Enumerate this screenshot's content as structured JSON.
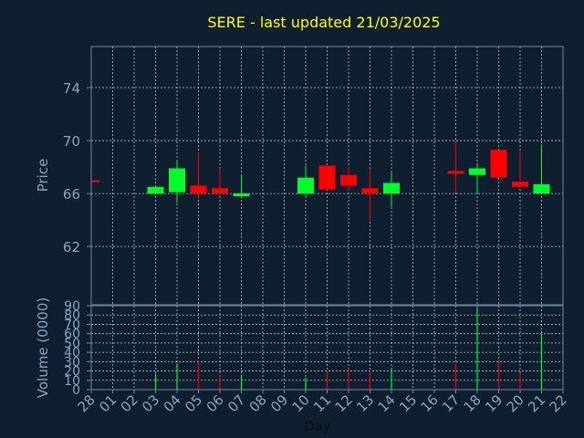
{
  "chart_data": [
    {
      "type": "candlestick",
      "title": "SERE - last updated 21/03/2025",
      "ylabel": "Price",
      "ylim": [
        57.6,
        77.1
      ],
      "yticks": [
        "62",
        "66",
        "70",
        "74"
      ],
      "ytick_values": [
        62,
        66,
        70,
        74
      ],
      "grid": true,
      "up_color": "#00ff2a",
      "down_color": "#ff0000",
      "candles": [
        {
          "day": "28",
          "open": 67.0,
          "close": 66.9,
          "high": 67.0,
          "low": 66.9
        },
        {
          "day": "03",
          "open": 66.0,
          "close": 66.5,
          "high": 66.5,
          "low": 66.0
        },
        {
          "day": "04",
          "open": 66.1,
          "close": 67.9,
          "high": 68.5,
          "low": 65.3
        },
        {
          "day": "05",
          "open": 66.6,
          "close": 66.0,
          "high": 69.1,
          "low": 65.6
        },
        {
          "day": "06",
          "open": 66.4,
          "close": 66.0,
          "high": 67.9,
          "low": 65.8
        },
        {
          "day": "07",
          "open": 65.8,
          "close": 66.0,
          "high": 67.4,
          "low": 65.8
        },
        {
          "day": "10",
          "open": 66.0,
          "close": 67.2,
          "high": 68.1,
          "low": 65.8
        },
        {
          "day": "11",
          "open": 68.1,
          "close": 66.3,
          "high": 68.1,
          "low": 66.3
        },
        {
          "day": "12",
          "open": 67.4,
          "close": 66.6,
          "high": 68.0,
          "low": 66.2
        },
        {
          "day": "13",
          "open": 66.4,
          "close": 66.0,
          "high": 67.9,
          "low": 63.9
        },
        {
          "day": "14",
          "open": 66.0,
          "close": 66.8,
          "high": 67.6,
          "low": 65.0
        },
        {
          "day": "17",
          "open": 67.7,
          "close": 67.5,
          "high": 70.0,
          "low": 66.1
        },
        {
          "day": "18",
          "open": 67.4,
          "close": 67.9,
          "high": 68.3,
          "low": 66.0
        },
        {
          "day": "19",
          "open": 69.3,
          "close": 67.2,
          "high": 69.3,
          "low": 67.2
        },
        {
          "day": "20",
          "open": 66.9,
          "close": 66.5,
          "high": 69.2,
          "low": 66.5
        },
        {
          "day": "21",
          "open": 66.0,
          "close": 66.7,
          "high": 69.7,
          "low": 66.0
        }
      ]
    },
    {
      "type": "bar",
      "ylabel": "Volume (0000)",
      "xlabel": "Day",
      "ylim": [
        0,
        90
      ],
      "yticks": [
        "0",
        "10",
        "20",
        "30",
        "40",
        "50",
        "60",
        "70",
        "80",
        "90"
      ],
      "ytick_values": [
        0,
        10,
        20,
        30,
        40,
        50,
        60,
        70,
        80,
        90
      ],
      "grid": true,
      "categories": [
        "28",
        "01",
        "02",
        "03",
        "04",
        "05",
        "06",
        "07",
        "08",
        "09",
        "10",
        "11",
        "12",
        "13",
        "14",
        "15",
        "16",
        "17",
        "18",
        "19",
        "20",
        "21",
        "22"
      ],
      "bars": [
        {
          "day": "03",
          "value": 17,
          "direction": "up"
        },
        {
          "day": "04",
          "value": 28,
          "direction": "up"
        },
        {
          "day": "05",
          "value": 31,
          "direction": "down"
        },
        {
          "day": "06",
          "value": 15,
          "direction": "down"
        },
        {
          "day": "07",
          "value": 16,
          "direction": "up"
        },
        {
          "day": "10",
          "value": 13,
          "direction": "up"
        },
        {
          "day": "11",
          "value": 19,
          "direction": "down"
        },
        {
          "day": "12",
          "value": 23,
          "direction": "down"
        },
        {
          "day": "13",
          "value": 20,
          "direction": "down"
        },
        {
          "day": "14",
          "value": 23,
          "direction": "up"
        },
        {
          "day": "17",
          "value": 28,
          "direction": "down"
        },
        {
          "day": "18",
          "value": 88,
          "direction": "up"
        },
        {
          "day": "19",
          "value": 32,
          "direction": "down"
        },
        {
          "day": "20",
          "value": 18,
          "direction": "down"
        },
        {
          "day": "21",
          "value": 60,
          "direction": "up"
        }
      ]
    }
  ]
}
